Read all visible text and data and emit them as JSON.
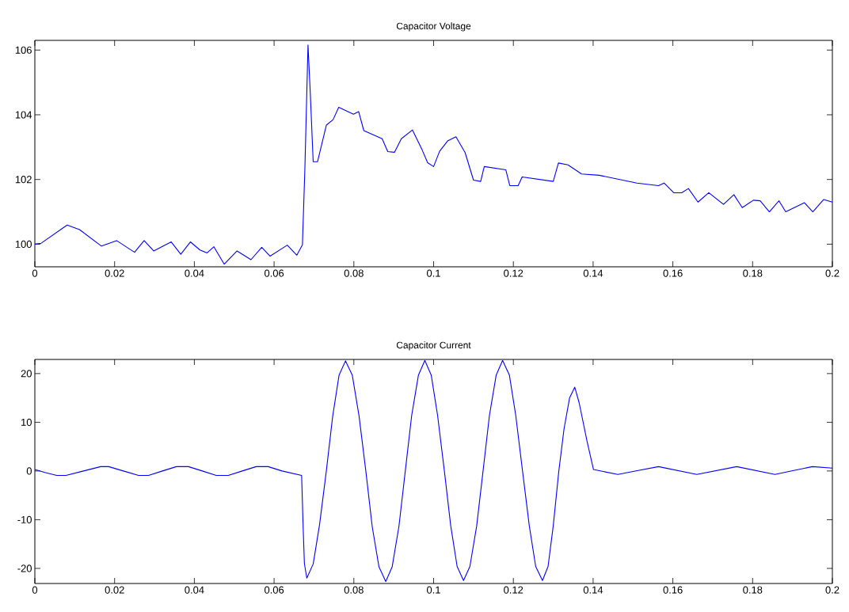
{
  "chart_data": [
    {
      "type": "line",
      "title": "Capacitor Voltage",
      "color": "#0000ff",
      "x": [
        0,
        0.0016,
        0.0081,
        0.0112,
        0.0167,
        0.0205,
        0.025,
        0.0274,
        0.0298,
        0.0342,
        0.0366,
        0.039,
        0.0414,
        0.0432,
        0.0449,
        0.0475,
        0.0507,
        0.0542,
        0.0569,
        0.059,
        0.0633,
        0.0657,
        0.0671,
        0.0677,
        0.0685,
        0.0691,
        0.0698,
        0.0709,
        0.0731,
        0.0748,
        0.0762,
        0.0799,
        0.0812,
        0.0825,
        0.0871,
        0.0885,
        0.0902,
        0.0919,
        0.0947,
        0.0971,
        0.0985,
        0.1,
        0.1015,
        0.1035,
        0.1056,
        0.1079,
        0.11,
        0.1118,
        0.1127,
        0.1181,
        0.1191,
        0.1212,
        0.1222,
        0.13,
        0.1313,
        0.1337,
        0.1371,
        0.1415,
        0.151,
        0.1564,
        0.1578,
        0.1602,
        0.1622,
        0.1639,
        0.1663,
        0.169,
        0.1727,
        0.1753,
        0.1774,
        0.1802,
        0.1819,
        0.1842,
        0.1866,
        0.1883,
        0.193,
        0.1951,
        0.1978,
        0.2
      ],
      "values": [
        100.0,
        100.03,
        100.59,
        100.45,
        99.94,
        100.11,
        99.75,
        100.11,
        99.79,
        100.07,
        99.69,
        100.07,
        99.82,
        99.73,
        99.92,
        99.38,
        99.79,
        99.52,
        99.9,
        99.63,
        99.97,
        99.66,
        99.98,
        102.25,
        106.16,
        104.6,
        102.55,
        102.55,
        103.68,
        103.85,
        104.23,
        104.02,
        104.1,
        103.51,
        103.26,
        102.86,
        102.84,
        103.26,
        103.53,
        102.92,
        102.52,
        102.4,
        102.87,
        103.19,
        103.32,
        102.83,
        101.98,
        101.94,
        102.4,
        102.3,
        101.81,
        101.81,
        102.08,
        101.94,
        102.51,
        102.45,
        102.17,
        102.13,
        101.89,
        101.81,
        101.89,
        101.59,
        101.59,
        101.72,
        101.3,
        101.59,
        101.23,
        101.53,
        101.13,
        101.36,
        101.34,
        101.0,
        101.34,
        101.0,
        101.28,
        101.0,
        101.38,
        101.3
      ],
      "xlim": [
        0,
        0.2
      ],
      "ylim": [
        99.3,
        106.3
      ],
      "xticks": [
        0,
        0.02,
        0.04,
        0.06,
        0.08,
        0.1,
        0.12,
        0.14,
        0.16,
        0.18,
        0.2
      ],
      "yticks": [
        100,
        102,
        104,
        106
      ]
    },
    {
      "type": "line",
      "title": "Capacitor Current",
      "color": "#0000ff",
      "x": [
        0,
        0.0025,
        0.0055,
        0.0078,
        0.0122,
        0.0165,
        0.0185,
        0.0222,
        0.026,
        0.0285,
        0.032,
        0.0355,
        0.0385,
        0.042,
        0.0455,
        0.0485,
        0.052,
        0.0555,
        0.0585,
        0.062,
        0.0669,
        0.0673,
        0.0676,
        0.0682,
        0.0698,
        0.0714,
        0.0731,
        0.0747,
        0.0763,
        0.0779,
        0.0796,
        0.0813,
        0.083,
        0.0846,
        0.0863,
        0.088,
        0.0896,
        0.0913,
        0.0929,
        0.0945,
        0.0962,
        0.0978,
        0.0994,
        0.101,
        0.1027,
        0.1043,
        0.1059,
        0.1075,
        0.1091,
        0.1108,
        0.1124,
        0.114,
        0.1157,
        0.1173,
        0.119,
        0.1206,
        0.1223,
        0.124,
        0.1256,
        0.1273,
        0.1287,
        0.13,
        0.1314,
        0.1327,
        0.1341,
        0.1354,
        0.1365,
        0.1385,
        0.1401,
        0.1462,
        0.1513,
        0.1564,
        0.1612,
        0.166,
        0.171,
        0.176,
        0.1808,
        0.1856,
        0.1903,
        0.195,
        0.2
      ],
      "values": [
        0.3,
        -0.3,
        -0.9,
        -0.9,
        0,
        0.9,
        0.9,
        0,
        -0.9,
        -0.9,
        0,
        0.9,
        0.9,
        0,
        -0.9,
        -0.9,
        0,
        0.9,
        0.9,
        0,
        -0.9,
        -12,
        -19,
        -22.0,
        -19.1,
        -11,
        0,
        11.3,
        19.7,
        22.6,
        19.7,
        11.3,
        0,
        -11.4,
        -19.7,
        -22.7,
        -19.7,
        -11.4,
        0,
        11.4,
        19.7,
        22.7,
        19.7,
        11.4,
        0,
        -11.3,
        -19.6,
        -22.5,
        -19.6,
        -11.3,
        0,
        11.4,
        19.7,
        22.7,
        19.7,
        11.4,
        0,
        -11.3,
        -19.6,
        -22.5,
        -19.6,
        -11.3,
        0,
        8.6,
        15,
        17.2,
        14,
        6,
        0.3,
        -0.7,
        0.1,
        0.9,
        0.1,
        -0.7,
        0.1,
        0.9,
        0.1,
        -0.7,
        0.1,
        0.9,
        0.6
      ],
      "xlim": [
        0,
        0.2
      ],
      "ylim": [
        -23.1,
        22.9
      ],
      "xticks": [
        0,
        0.02,
        0.04,
        0.06,
        0.08,
        0.1,
        0.12,
        0.14,
        0.16,
        0.18,
        0.2
      ],
      "yticks": [
        -20,
        -10,
        0,
        10,
        20
      ]
    }
  ]
}
